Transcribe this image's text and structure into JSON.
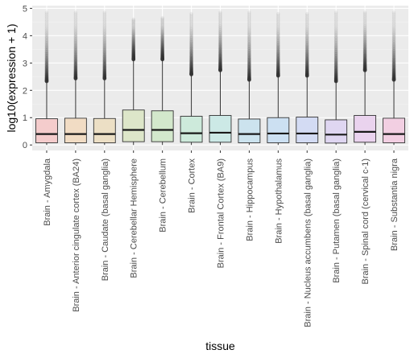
{
  "chart_data": {
    "type": "boxplot",
    "xlabel": "tissue",
    "ylabel": "log10(expression + 1)",
    "ylim": [
      -0.2,
      5.1
    ],
    "y_ticks": [
      0,
      1,
      2,
      3,
      4,
      5
    ],
    "grid": true,
    "legend": "none",
    "categories": [
      "Brain - Amygdala",
      "Brain - Anterior cingulate cortex (BA24)",
      "Brain - Caudate (basal ganglia)",
      "Brain - Cerebellar Hemisphere",
      "Brain - Cerebellum",
      "Brain - Cortex",
      "Brain - Frontal Cortex (BA9)",
      "Brain - Hippocampus",
      "Brain - Hypothalamus",
      "Brain - Nucleus accumbens (basal ganglia)",
      "Brain - Putamen (basal ganglia)",
      "Brain - Spinal cord (cervical c-1)",
      "Brain - Substantia nigra"
    ],
    "boxes": [
      {
        "q1": 0.08,
        "median": 0.4,
        "q3": 0.96,
        "whisker_low": 0,
        "whisker_high": 2.3,
        "outlier_max": 4.85
      },
      {
        "q1": 0.08,
        "median": 0.4,
        "q3": 0.98,
        "whisker_low": 0,
        "whisker_high": 2.4,
        "outlier_max": 4.85
      },
      {
        "q1": 0.08,
        "median": 0.4,
        "q3": 0.97,
        "whisker_low": 0,
        "whisker_high": 2.4,
        "outlier_max": 4.85
      },
      {
        "q1": 0.12,
        "median": 0.55,
        "q3": 1.28,
        "whisker_low": 0,
        "whisker_high": 3.1,
        "outlier_max": 4.6
      },
      {
        "q1": 0.12,
        "median": 0.55,
        "q3": 1.25,
        "whisker_low": 0,
        "whisker_high": 3.1,
        "outlier_max": 4.65
      },
      {
        "q1": 0.1,
        "median": 0.43,
        "q3": 1.05,
        "whisker_low": 0,
        "whisker_high": 2.55,
        "outlier_max": 4.8
      },
      {
        "q1": 0.1,
        "median": 0.45,
        "q3": 1.08,
        "whisker_low": 0,
        "whisker_high": 2.7,
        "outlier_max": 4.85
      },
      {
        "q1": 0.08,
        "median": 0.4,
        "q3": 0.95,
        "whisker_low": 0,
        "whisker_high": 2.35,
        "outlier_max": 4.85
      },
      {
        "q1": 0.08,
        "median": 0.42,
        "q3": 1.0,
        "whisker_low": 0,
        "whisker_high": 2.5,
        "outlier_max": 4.8
      },
      {
        "q1": 0.08,
        "median": 0.42,
        "q3": 1.02,
        "whisker_low": 0,
        "whisker_high": 2.5,
        "outlier_max": 4.8
      },
      {
        "q1": 0.07,
        "median": 0.38,
        "q3": 0.92,
        "whisker_low": 0,
        "whisker_high": 2.3,
        "outlier_max": 4.85
      },
      {
        "q1": 0.1,
        "median": 0.48,
        "q3": 1.08,
        "whisker_low": 0,
        "whisker_high": 2.7,
        "outlier_max": 4.85
      },
      {
        "q1": 0.08,
        "median": 0.4,
        "q3": 0.98,
        "whisker_low": 0,
        "whisker_high": 2.35,
        "outlier_max": 4.85
      }
    ],
    "fill_colors": [
      "#f4cccc",
      "#f1dcc4",
      "#ecdfc5",
      "#dde6c9",
      "#d3e8cc",
      "#cdeadb",
      "#cce9e6",
      "#cce3ee",
      "#cce0f2",
      "#d3dbf3",
      "#dfd6f1",
      "#ead3ee",
      "#f2cfe2"
    ],
    "colors": {
      "panel_bg": "#ebebeb",
      "grid_major": "#ffffff",
      "box_outline": "#333333",
      "outlier": "#333333"
    }
  }
}
